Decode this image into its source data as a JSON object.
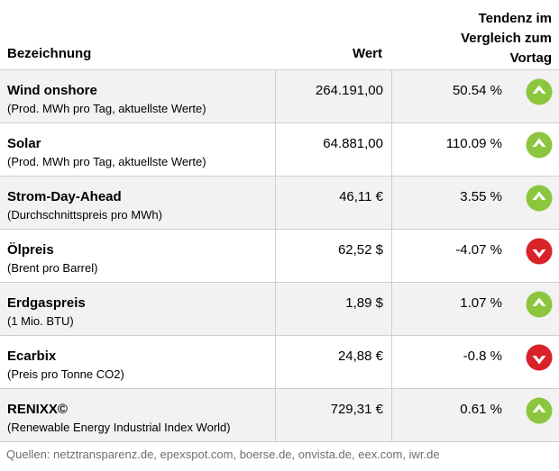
{
  "header": {
    "col_name": "Bezeichnung",
    "col_value": "Wert",
    "col_trend_line1": "Tendenz im",
    "col_trend_line2": "Vergleich zum",
    "col_trend_line3": "Vortag"
  },
  "rows": [
    {
      "name": "Wind onshore",
      "sub": "(Prod. MWh pro Tag, aktuellste Werte)",
      "value": "264.191,00",
      "change": "50.54 %",
      "trend": "up"
    },
    {
      "name": "Solar",
      "sub": "(Prod. MWh pro Tag, aktuellste Werte)",
      "value": "64.881,00",
      "change": "110.09 %",
      "trend": "up"
    },
    {
      "name": "Strom-Day-Ahead",
      "sub": "(Durchschnittspreis pro MWh)",
      "value": "46,11 €",
      "change": "3.55 %",
      "trend": "up"
    },
    {
      "name": "Ölpreis",
      "sub": "(Brent pro Barrel)",
      "value": "62,52 $",
      "change": "-4.07 %",
      "trend": "down"
    },
    {
      "name": "Erdgaspreis",
      "sub": "(1 Mio. BTU)",
      "value": "1,89 $",
      "change": "1.07 %",
      "trend": "up"
    },
    {
      "name": "Ecarbix",
      "sub": "(Preis pro Tonne CO2)",
      "value": "24,88 €",
      "change": "-0.8 %",
      "trend": "down"
    },
    {
      "name": "RENIXX©",
      "sub": "(Renewable Energy Industrial Index World)",
      "value": "729,31 €",
      "change": "0.61 %",
      "trend": "up"
    }
  ],
  "icons": {
    "up": {
      "name": "trend-up-icon",
      "color": "#8cc63f"
    },
    "down": {
      "name": "trend-down-icon",
      "color": "#d9222a"
    }
  },
  "footer": {
    "sources": "Quellen: netztransparenz.de, epexspot.com, boerse.de, onvista.de, eex.com, iwr.de"
  }
}
